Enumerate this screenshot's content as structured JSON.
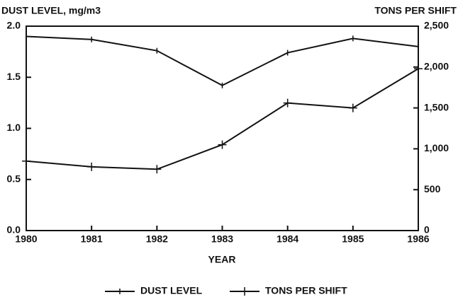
{
  "chart_data": {
    "type": "line",
    "y_label": "DUST LEVEL, mg/m3",
    "y2_label": "TONS PER SHIFT",
    "x_label": "YEAR",
    "categories": [
      "1980",
      "1981",
      "1982",
      "1983",
      "1984",
      "1985",
      "1986"
    ],
    "series": [
      {
        "name": "DUST LEVEL",
        "color": "#111111",
        "marker": "tick",
        "values": [
          1.9,
          1.87,
          1.76,
          1.42,
          1.74,
          1.88,
          1.8
        ]
      },
      {
        "name": "TONS PER SHIFT",
        "color": "#111111",
        "marker": "plus",
        "axis": "y2",
        "values": [
          850,
          780,
          750,
          1050,
          1560,
          1500,
          1980
        ]
      }
    ],
    "ylim": [
      0,
      2
    ],
    "yticks": [
      {
        "value": 0,
        "label": "0.0"
      },
      0.5,
      {
        "value": 1,
        "label": "1.0"
      },
      1.5,
      {
        "value": 2,
        "label": "2.0"
      }
    ],
    "y2lim": [
      0,
      2500
    ],
    "y2ticks": [
      0,
      500,
      {
        "value": 1000,
        "label": "1,000"
      },
      {
        "value": 1500,
        "label": "1,500"
      },
      {
        "value": 2000,
        "label": "2,000"
      },
      {
        "value": 2500,
        "label": "2,500"
      }
    ],
    "legend": "bottom"
  }
}
